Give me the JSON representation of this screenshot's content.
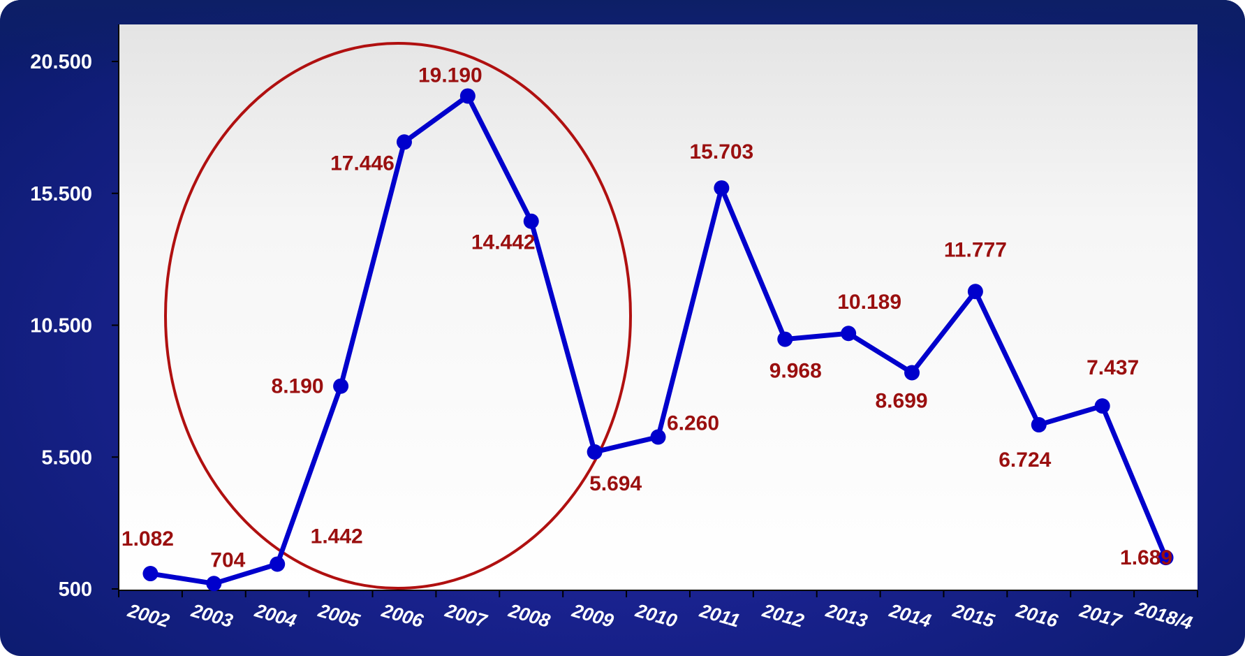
{
  "chart_data": {
    "type": "line",
    "title": "",
    "xlabel": "",
    "ylabel": "",
    "categories": [
      "2002",
      "2003",
      "2004",
      "2005",
      "2006",
      "2007",
      "2008",
      "2009",
      "2010",
      "2011",
      "2012",
      "2013",
      "2014",
      "2015",
      "2016",
      "2017",
      "2018/4"
    ],
    "series": [
      {
        "values": [
          1082,
          704,
          1442,
          8190,
          17446,
          19190,
          14442,
          5694,
          6260,
          15703,
          9968,
          10189,
          8699,
          11777,
          6724,
          7437,
          1689
        ],
        "color": "#0000cc"
      }
    ],
    "data_labels": [
      "1.082",
      "704",
      "1.442",
      "8.190",
      "17.446",
      "19.190",
      "14.442",
      "5.694",
      "6.260",
      "15.703",
      "9.968",
      "10.189",
      "8.699",
      "11.777",
      "6.724",
      "7.437",
      "1.689"
    ],
    "y_ticks": [
      {
        "value": 500,
        "label": "500"
      },
      {
        "value": 5500,
        "label": "5.500"
      },
      {
        "value": 10500,
        "label": "10.500"
      },
      {
        "value": 15500,
        "label": "15.500"
      },
      {
        "value": 20500,
        "label": "20.500"
      }
    ],
    "ylim": [
      500,
      22000
    ],
    "grid": false,
    "legend": "none",
    "annotation": {
      "shape": "ellipse",
      "color": "#b01010",
      "covers_categories": [
        "2004",
        "2005",
        "2006",
        "2007",
        "2008",
        "2009"
      ]
    },
    "colors": {
      "label": "#9a0f0f",
      "line": "#0000cc",
      "background": "#101f7a"
    }
  }
}
